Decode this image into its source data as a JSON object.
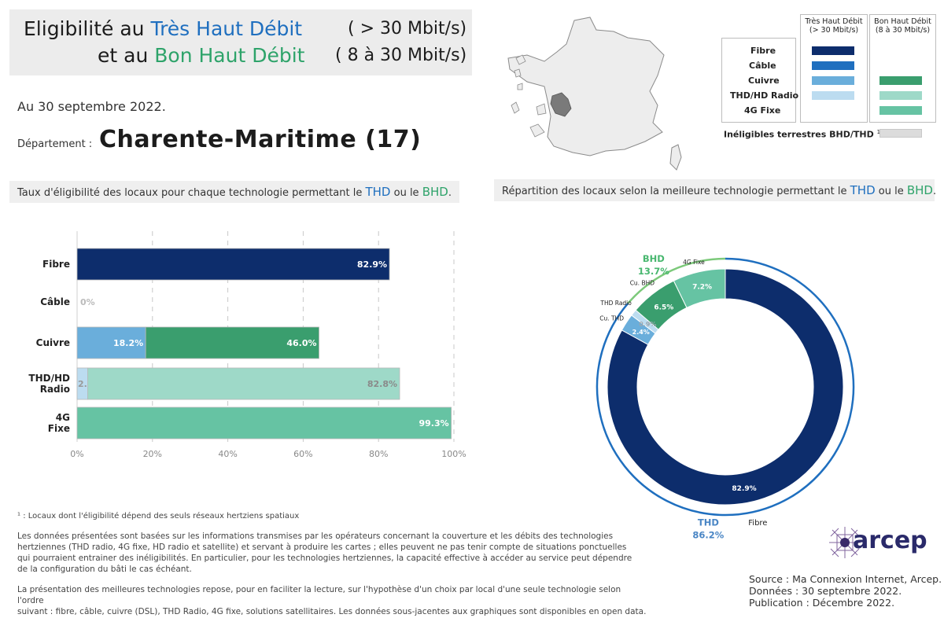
{
  "title": {
    "line1_prefix": "Eligibilité au",
    "line1_highlight": "Très Haut Débit",
    "line1_suffix": "( > 30 Mbit/s)",
    "line2_prefix": "et au",
    "line2_highlight": "Bon Haut Débit",
    "line2_suffix": "( 8 à 30 Mbit/s)"
  },
  "date_text": "Au 30 septembre 2022.",
  "department": {
    "label": "Département :",
    "name": "Charente-Maritime (17)"
  },
  "colors": {
    "fibre": "#0d2d6c",
    "cable": "#1f6fbf",
    "cuivre_thd": "#6aaedb",
    "thd_radio": "#bcdcf0",
    "cuivre_bhd": "#3a9e6e",
    "hd_radio": "#9ed9c8",
    "fixe_4g": "#66c3a3",
    "ineligible": "#dcdcdc",
    "thd_accent": "#1f6fbf",
    "bhd_accent": "#2ea36a"
  },
  "legend": {
    "col_thd": [
      "Très Haut Débit",
      "(> 30 Mbit/s)"
    ],
    "col_bhd": [
      "Bon Haut Débit",
      "(8 à 30 Mbit/s)"
    ],
    "rows": [
      "Fibre",
      "Câble",
      "Cuivre",
      "THD/HD Radio",
      "4G Fixe"
    ],
    "ineligible_label": "Inéligibles terrestres BHD/THD",
    "ineligible_sup": "1"
  },
  "left_section": {
    "title_prefix": "Taux d'éligibilité des locaux pour chaque technologie permettant le",
    "thd": "THD",
    "or": "ou le",
    "bhd": "BHD",
    "end": "."
  },
  "right_section": {
    "title_prefix": "Répartition des locaux selon la meilleure technologie permettant le",
    "thd": "THD",
    "or": "ou le",
    "bhd": "BHD",
    "end": "."
  },
  "chart_data": [
    {
      "type": "bar",
      "orientation": "horizontal",
      "stacked": true,
      "categories": [
        "Fibre",
        "Câble",
        "Cuivre",
        "THD/HD Radio",
        "4G Fixe"
      ],
      "series": [
        {
          "name": "Très Haut Débit",
          "values": [
            82.9,
            0,
            18.2,
            2.8,
            0
          ]
        },
        {
          "name": "Bon Haut Débit",
          "values": [
            0,
            0,
            46.0,
            82.8,
            99.3
          ]
        }
      ],
      "data_labels": [
        [
          "82.9%",
          "0%",
          "18.2%",
          "2.8%",
          null
        ],
        [
          null,
          null,
          "46.0%",
          "82.8%",
          "99.3%"
        ]
      ],
      "xlim": [
        0,
        100
      ],
      "x_ticks": [
        "0%",
        "20%",
        "40%",
        "60%",
        "80%",
        "100%"
      ],
      "grid": "vertical dashed"
    },
    {
      "type": "pie",
      "style": "donut",
      "slices": [
        {
          "label": "Fibre",
          "value": 82.9,
          "text": "82.9%",
          "group": "THD"
        },
        {
          "label": "Cu. THD",
          "value": 2.4,
          "text": "2.4%",
          "group": "THD"
        },
        {
          "label": "THD Radio",
          "value": 0.9,
          "text": "0.9%",
          "group": "THD"
        },
        {
          "label": "Cu. BHD",
          "value": 6.5,
          "text": "6.5%",
          "group": "BHD"
        },
        {
          "label": "4G Fixe",
          "value": 7.2,
          "text": "7.2%",
          "group": "BHD"
        }
      ],
      "groups": [
        {
          "name": "THD",
          "value": 86.2,
          "text": "86.2%"
        },
        {
          "name": "BHD",
          "value": 13.7,
          "text": "13.7%"
        }
      ]
    }
  ],
  "footnote": "¹ : Locaux dont l'éligibilité dépend des seuls réseaux hertziens spatiaux",
  "notes": [
    "Les données présentées sont basées sur les informations transmises par les opérateurs concernant la couverture et les débits des technologies",
    "hertziennes (THD radio, 4G fixe, HD radio et satellite) et servant à produire les cartes ; elles peuvent ne pas tenir compte de situations ponctuelles",
    "qui pourraient entrainer des inéligibilités. En particulier, pour les technologies hertziennes, la capacité effective à accéder au service peut dépendre",
    "de la configuration du bâti le cas échéant."
  ],
  "notes2": [
    "La présentation des meilleures technologies repose, pour en faciliter la lecture, sur l'hypothèse d'un choix par local d'une seule technologie selon l'ordre",
    "suivant : fibre, câble, cuivre (DSL), THD Radio, 4G fixe, solutions satellitaires. Les données sous-jacentes aux graphiques sont disponibles en open data."
  ],
  "logo_text": "arcep",
  "source": [
    "Source : Ma Connexion Internet, Arcep.",
    "Données : 30 septembre 2022.",
    "Publication : Décembre 2022."
  ]
}
